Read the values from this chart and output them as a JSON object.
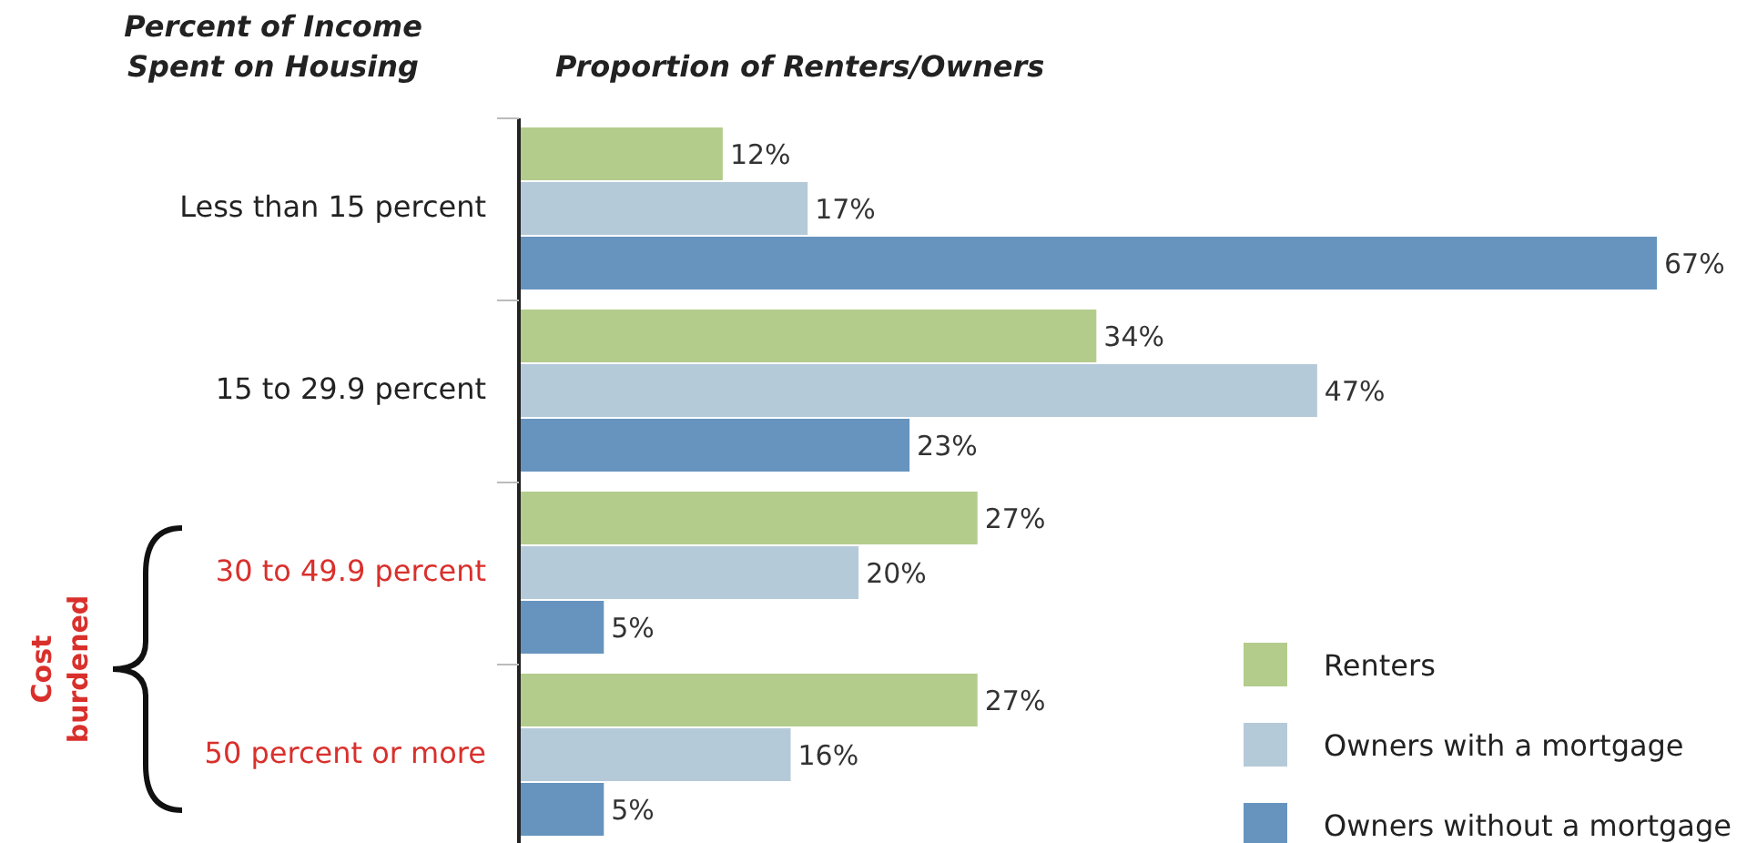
{
  "chart_data": {
    "type": "bar",
    "orientation": "horizontal",
    "xlabel": "Proportion of Renters/Owners",
    "ylabel": "Percent of Income Spent on Housing",
    "categories": [
      "Less than 15 percent",
      "15 to 29.9 percent",
      "30 to 49.9 percent",
      "50 percent or more"
    ],
    "series": [
      {
        "name": "Renters",
        "color": "#b3cc8c",
        "values": [
          12,
          34,
          27,
          27
        ],
        "value_labels": [
          "12%",
          "34%",
          "27%",
          "27%"
        ]
      },
      {
        "name": "Owners with a mortgage",
        "color": "#b5cad9",
        "values": [
          17,
          47,
          20,
          16
        ],
        "value_labels": [
          "17%",
          "47%",
          "20%",
          "16%"
        ]
      },
      {
        "name": "Owners without a mortgage",
        "color": "#6694bf",
        "values": [
          67,
          23,
          5,
          5
        ],
        "value_labels": [
          "67%",
          "23%",
          "5%",
          "5%"
        ]
      }
    ],
    "annotations": [
      "Cost burdened"
    ],
    "legend": "bottom right",
    "grid": false
  }
}
